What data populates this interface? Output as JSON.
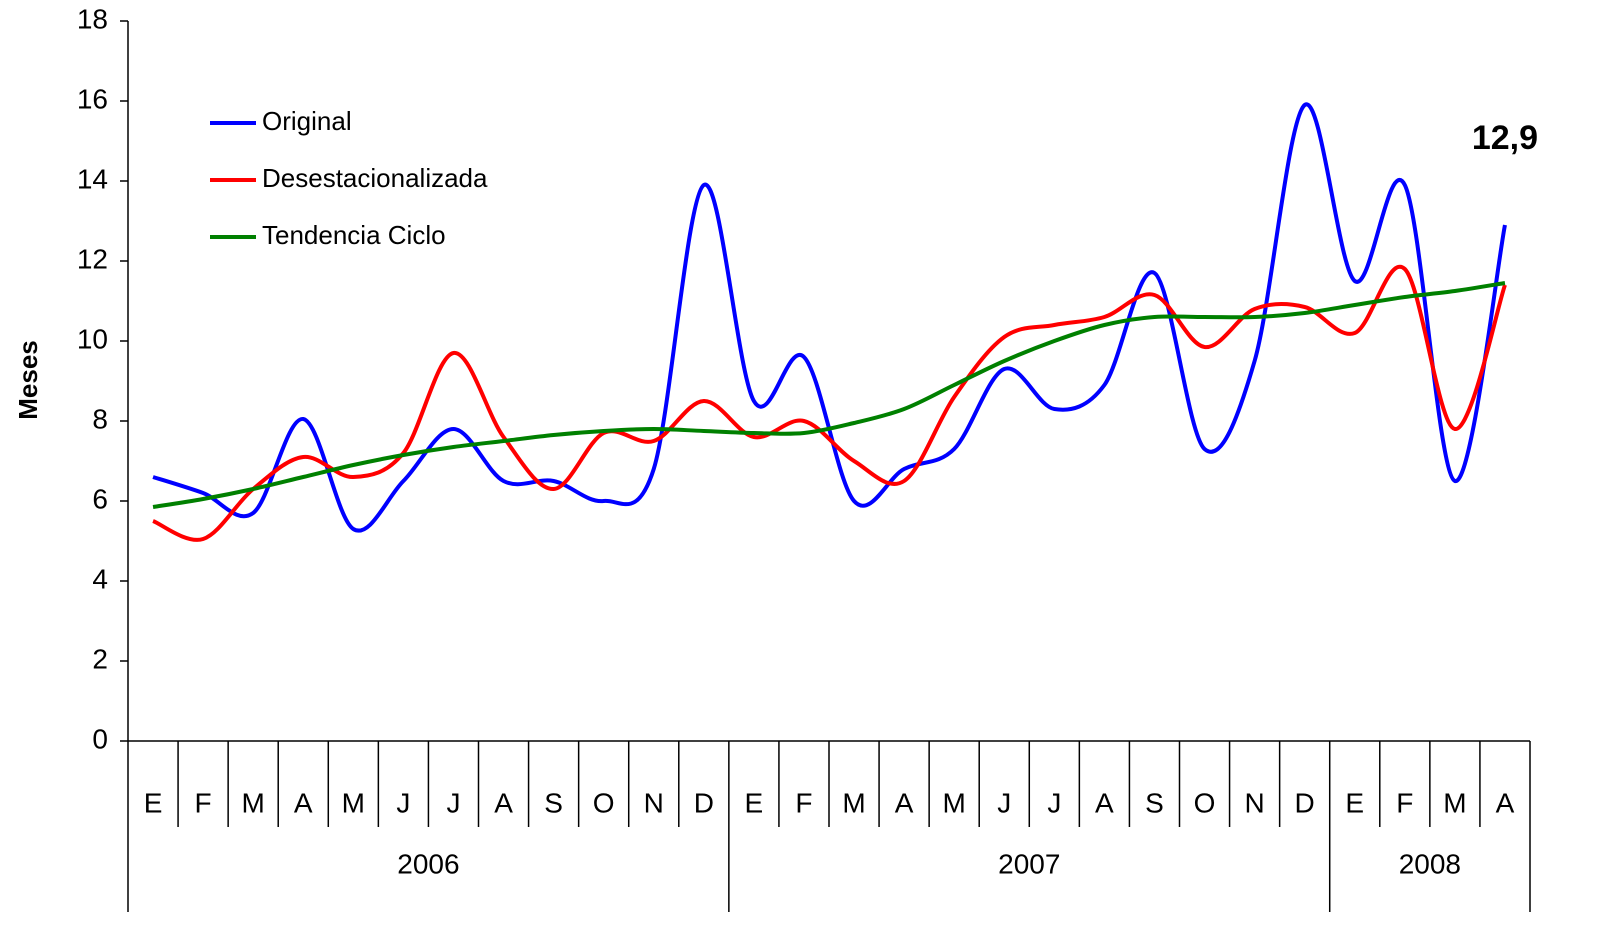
{
  "chart_data": {
    "type": "line",
    "y_label": "Meses",
    "category_groups": [
      {
        "label": "2006",
        "categories": [
          "E",
          "F",
          "M",
          "A",
          "M",
          "J",
          "J",
          "A",
          "S",
          "O",
          "N",
          "D"
        ]
      },
      {
        "label": "2007",
        "categories": [
          "E",
          "F",
          "M",
          "A",
          "M",
          "J",
          "J",
          "A",
          "S",
          "O",
          "N",
          "D"
        ]
      },
      {
        "label": "2008",
        "categories": [
          "E",
          "F",
          "M",
          "A"
        ]
      }
    ],
    "series": [
      {
        "name": "Original",
        "color": "#0000ff",
        "values": [
          6.6,
          6.2,
          5.7,
          8.05,
          5.3,
          6.5,
          7.8,
          6.5,
          6.5,
          6.0,
          6.8,
          13.9,
          8.5,
          9.6,
          6.0,
          6.8,
          7.3,
          9.3,
          8.3,
          8.9,
          11.7,
          7.3,
          9.5,
          15.9,
          11.5,
          13.9,
          6.5,
          12.9
        ],
        "value_labels": [
          null,
          null,
          null,
          null,
          null,
          null,
          null,
          null,
          null,
          null,
          null,
          null,
          null,
          null,
          null,
          null,
          null,
          null,
          null,
          null,
          null,
          null,
          null,
          null,
          null,
          null,
          null,
          "12,9"
        ]
      },
      {
        "name": "Desestacionalizada",
        "color": "#ff0000",
        "values": [
          5.5,
          5.05,
          6.3,
          7.1,
          6.6,
          7.2,
          9.7,
          7.6,
          6.3,
          7.7,
          7.5,
          8.5,
          7.6,
          8.0,
          7.0,
          6.5,
          8.6,
          10.1,
          10.4,
          10.6,
          11.15,
          9.85,
          10.8,
          10.85,
          10.2,
          11.8,
          7.8,
          11.4
        ]
      },
      {
        "name": "Tendencia Ciclo",
        "color": "#008000",
        "values": [
          5.85,
          6.05,
          6.3,
          6.6,
          6.9,
          7.15,
          7.35,
          7.5,
          7.65,
          7.75,
          7.8,
          7.75,
          7.7,
          7.7,
          7.95,
          8.3,
          8.9,
          9.5,
          10.0,
          10.4,
          10.6,
          10.6,
          10.6,
          10.7,
          10.9,
          11.1,
          11.25,
          11.45
        ]
      }
    ],
    "ylim": [
      0,
      18
    ],
    "yticks": [
      0,
      2,
      4,
      6,
      8,
      10,
      12,
      14,
      16,
      18
    ],
    "legend": "upper-left"
  }
}
